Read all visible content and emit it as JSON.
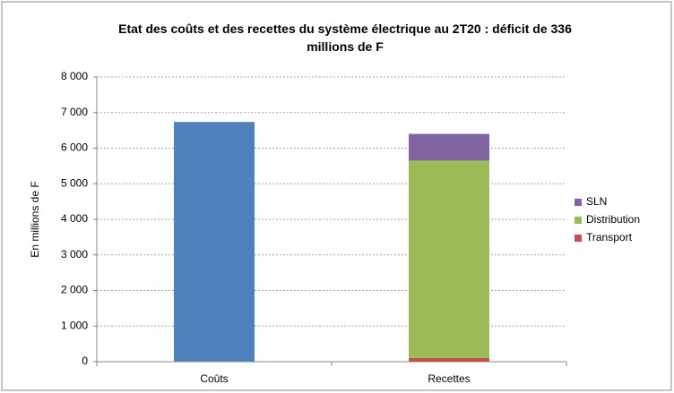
{
  "chart_data": {
    "type": "stacked-bar",
    "title": "Etat des coûts et des recettes du système électrique au 2T20 : déficit de 336 millions de F",
    "y_label": "En millions de F",
    "categories": [
      "Coûts",
      "Recettes"
    ],
    "series": [
      {
        "color": "#4f81bd",
        "values": [
          6736,
          null
        ]
      },
      {
        "name": "Transport",
        "color": "#c0504d",
        "values": [
          null,
          100
        ]
      },
      {
        "name": "Distribution",
        "color": "#9bbb59",
        "values": [
          null,
          5550
        ]
      },
      {
        "name": "SLN",
        "color": "#8064a2",
        "values": [
          null,
          750
        ]
      }
    ],
    "ylim": [
      0,
      8000
    ],
    "yticks": [
      0,
      {
        "value": 1000,
        "label": "1 000"
      },
      {
        "value": 2000,
        "label": "2 000"
      },
      {
        "value": 3000,
        "label": "3 000"
      },
      {
        "value": 4000,
        "label": "4 000"
      },
      {
        "value": 5000,
        "label": "5 000"
      },
      {
        "value": 6000,
        "label": "6 000"
      },
      {
        "value": 7000,
        "label": "7 000"
      },
      {
        "value": 8000,
        "label": "8 000"
      }
    ],
    "grid": true,
    "legend": "right"
  }
}
